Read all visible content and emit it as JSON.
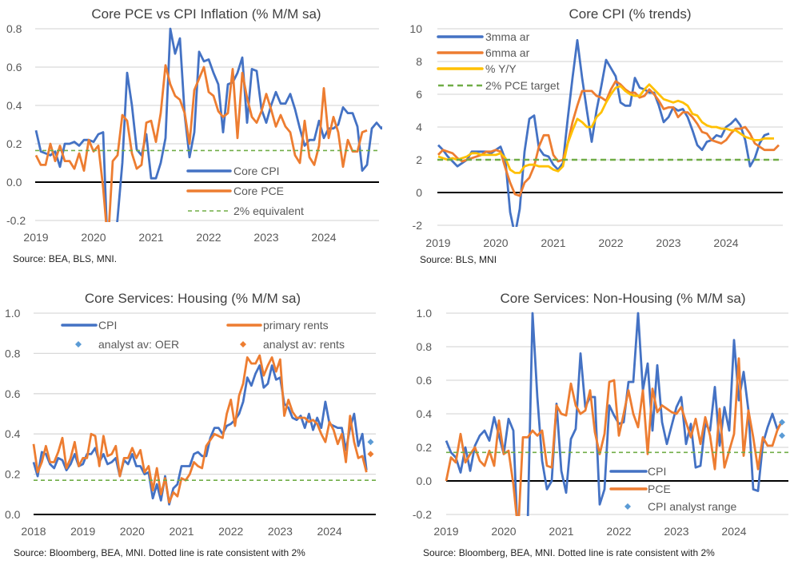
{
  "chart_data": [
    {
      "id": "p1",
      "type": "line",
      "title": "Core PCE vs CPI Inflation (% M/M sa)",
      "source": "Source: BEA, BLS, MNI.",
      "xlabel": "",
      "ylabel": "",
      "x_start": "2019-01",
      "x_tick_labels": [
        "2019",
        "2020",
        "2021",
        "2022",
        "2023",
        "2024"
      ],
      "y_tick_labels": [
        "0.8",
        "0.6",
        "0.4",
        "0.2",
        "0.0",
        "-0.2"
      ],
      "y_ticks": [
        0.8,
        0.6,
        0.4,
        0.2,
        0.0,
        -0.2
      ],
      "ylim": [
        -0.2,
        0.8
      ],
      "grid": true,
      "legend_position": "bottom-center",
      "series": [
        {
          "name": "Core CPI",
          "color": "#4472c4",
          "style": "solid",
          "values": [
            0.27,
            0.16,
            0.15,
            0.14,
            0.16,
            0.08,
            0.2,
            0.2,
            0.21,
            0.19,
            0.22,
            0.22,
            0.21,
            0.25,
            0.26,
            -0.4,
            -0.45,
            -0.19,
            0.1,
            0.57,
            0.4,
            0.17,
            0.14,
            0.25,
            0.02,
            0.02,
            0.1,
            0.23,
            0.8,
            0.67,
            0.75,
            0.35,
            0.13,
            0.26,
            0.68,
            0.63,
            0.64,
            0.57,
            0.51,
            0.26,
            0.51,
            0.52,
            0.57,
            0.65,
            0.31,
            0.59,
            0.58,
            0.38,
            0.31,
            0.4,
            0.47,
            0.41,
            0.41,
            0.46,
            0.38,
            0.28,
            0.19,
            0.22,
            0.22,
            0.32,
            0.23,
            0.28,
            0.28,
            0.3,
            0.39,
            0.36,
            0.36,
            0.29,
            0.06,
            0.09,
            0.28,
            0.31,
            0.28,
            0.31
          ]
        },
        {
          "name": "Core PCE",
          "color": "#ed7d31",
          "style": "solid",
          "values": [
            0.14,
            0.09,
            0.09,
            0.2,
            0.11,
            0.19,
            0.11,
            0.11,
            0.07,
            0.15,
            0.06,
            0.22,
            0.16,
            0.19,
            -0.03,
            -0.32,
            0.11,
            0.14,
            0.35,
            0.32,
            0.15,
            0.07,
            0.09,
            0.31,
            0.32,
            0.21,
            0.36,
            0.61,
            0.51,
            0.45,
            0.43,
            0.36,
            0.2,
            0.48,
            0.54,
            0.6,
            0.47,
            0.45,
            0.37,
            0.34,
            0.36,
            0.59,
            0.23,
            0.57,
            0.44,
            0.34,
            0.31,
            0.37,
            0.46,
            0.38,
            0.29,
            0.35,
            0.29,
            0.26,
            0.14,
            0.1,
            0.32,
            0.13,
            0.09,
            0.19,
            0.49,
            0.23,
            0.34,
            0.26,
            0.08,
            0.22,
            0.16,
            0.16,
            0.26,
            0.27
          ]
        },
        {
          "name": "2% equivalent",
          "color": "#70ad47",
          "style": "dashed",
          "constant": 0.165
        }
      ]
    },
    {
      "id": "p2",
      "type": "line",
      "title": "Core CPI (% trends)",
      "source": "Source: BLS, MNI",
      "xlabel": "",
      "ylabel": "",
      "x_start": "2019-01",
      "x_tick_labels": [
        "2019",
        "2020",
        "2021",
        "2022",
        "2023",
        "2024"
      ],
      "y_tick_labels": [
        "10",
        "8",
        "6",
        "4",
        "2",
        "0",
        "-2"
      ],
      "y_ticks": [
        10,
        8,
        6,
        4,
        2,
        0,
        -2
      ],
      "ylim": [
        -2,
        10
      ],
      "grid": true,
      "legend_position": "top-left",
      "series": [
        {
          "name": "3mma ar",
          "color": "#4472c4",
          "style": "solid",
          "values": [
            2.9,
            2.6,
            2.2,
            1.9,
            1.6,
            1.8,
            2.0,
            2.5,
            2.5,
            2.5,
            2.5,
            2.4,
            2.6,
            2.8,
            2.0,
            -1.2,
            -2.6,
            -1.0,
            2.5,
            4.5,
            4.7,
            2.7,
            2.3,
            2.2,
            1.7,
            1.4,
            1.8,
            4.5,
            7.0,
            9.3,
            7.0,
            5.0,
            3.1,
            5.0,
            6.5,
            8.1,
            7.6,
            7.1,
            5.5,
            5.3,
            5.3,
            7.0,
            6.4,
            6.3,
            6.1,
            6.1,
            5.3,
            4.3,
            4.6,
            5.2,
            5.0,
            5.1,
            4.6,
            3.8,
            2.9,
            2.6,
            3.1,
            3.2,
            3.5,
            3.4,
            4.0,
            4.2,
            4.5,
            4.1,
            3.2,
            1.6,
            2.1,
            3.0,
            3.5,
            3.6
          ]
        },
        {
          "name": "6mma ar",
          "color": "#ed7d31",
          "style": "solid",
          "values": [
            2.3,
            2.6,
            2.5,
            2.4,
            2.1,
            1.9,
            2.0,
            2.1,
            2.2,
            2.3,
            2.5,
            2.5,
            2.6,
            2.5,
            1.5,
            0.6,
            -0.1,
            -0.2,
            0.6,
            0.9,
            1.6,
            2.8,
            3.5,
            3.5,
            2.3,
            1.9,
            2.0,
            3.0,
            4.3,
            5.3,
            6.2,
            6.2,
            6.2,
            5.9,
            5.8,
            5.6,
            6.3,
            6.8,
            6.6,
            6.3,
            6.1,
            6.1,
            5.8,
            5.9,
            6.3,
            6.0,
            5.6,
            5.1,
            5.2,
            5.2,
            4.6,
            4.9,
            4.9,
            4.6,
            4.2,
            3.7,
            3.6,
            3.2,
            3.1,
            3.0,
            3.2,
            3.6,
            3.9,
            3.9,
            4.0,
            3.6,
            3.0,
            2.8,
            2.6,
            2.6,
            2.6,
            2.9
          ]
        },
        {
          "name": "% Y/Y",
          "color": "#ffc000",
          "style": "solid",
          "values": [
            2.2,
            2.1,
            2.0,
            2.1,
            2.0,
            2.1,
            2.2,
            2.4,
            2.4,
            2.3,
            2.3,
            2.3,
            2.3,
            2.4,
            2.1,
            1.4,
            1.2,
            1.2,
            1.6,
            1.7,
            1.7,
            1.6,
            1.6,
            1.6,
            1.4,
            1.3,
            1.6,
            3.0,
            3.8,
            4.5,
            4.3,
            4.0,
            4.0,
            4.6,
            4.9,
            5.5,
            6.0,
            6.4,
            6.5,
            6.2,
            6.0,
            5.9,
            5.9,
            6.3,
            6.6,
            6.3,
            6.0,
            5.7,
            5.6,
            5.5,
            5.6,
            5.5,
            5.3,
            4.8,
            4.7,
            4.3,
            4.1,
            4.0,
            4.0,
            3.9,
            3.9,
            3.8,
            3.8,
            3.6,
            3.4,
            3.3,
            3.2,
            3.2,
            3.3,
            3.3,
            3.3
          ]
        },
        {
          "name": "2% PCE target",
          "color": "#70ad47",
          "style": "dashed",
          "constant": 2.0
        }
      ]
    },
    {
      "id": "p3",
      "type": "line",
      "title": "Core Services: Housing (% M/M sa)",
      "source": "Source: Bloomberg, BEA, MNI. Dotted line is rate consistent with 2%",
      "xlabel": "",
      "ylabel": "",
      "x_start": "2018-01",
      "x_tick_labels": [
        "2018",
        "2019",
        "2020",
        "2021",
        "2022",
        "2023",
        "2024"
      ],
      "y_tick_labels": [
        "1.0",
        "0.8",
        "0.6",
        "0.4",
        "0.2",
        "0.0"
      ],
      "y_ticks": [
        1.0,
        0.8,
        0.6,
        0.4,
        0.2,
        0.0
      ],
      "ylim": [
        0.0,
        1.0
      ],
      "grid": true,
      "legend_position": "top",
      "series": [
        {
          "name": "CPI",
          "color": "#4472c4",
          "style": "solid",
          "values": [
            0.26,
            0.19,
            0.31,
            0.3,
            0.25,
            0.23,
            0.28,
            0.27,
            0.22,
            0.25,
            0.3,
            0.24,
            0.25,
            0.3,
            0.3,
            0.33,
            0.26,
            0.3,
            0.25,
            0.26,
            0.28,
            0.19,
            0.27,
            0.25,
            0.3,
            0.24,
            0.24,
            0.2,
            0.21,
            0.08,
            0.15,
            0.07,
            0.19,
            0.05,
            0.13,
            0.15,
            0.24,
            0.24,
            0.24,
            0.3,
            0.31,
            0.29,
            0.29,
            0.38,
            0.43,
            0.43,
            0.4,
            0.44,
            0.45,
            0.47,
            0.5,
            0.56,
            0.68,
            0.64,
            0.7,
            0.74,
            0.63,
            0.65,
            0.74,
            0.67,
            0.68,
            0.55,
            0.53,
            0.48,
            0.47,
            0.49,
            0.43,
            0.5,
            0.42,
            0.48,
            0.43,
            0.56,
            0.45,
            0.44,
            0.43,
            0.43,
            0.32,
            0.43,
            0.5,
            0.34,
            0.4,
            0.22
          ]
        },
        {
          "name": "primary rents",
          "color": "#ed7d31",
          "style": "solid",
          "values": [
            0.35,
            0.21,
            0.26,
            0.34,
            0.26,
            0.26,
            0.31,
            0.38,
            0.23,
            0.28,
            0.36,
            0.24,
            0.28,
            0.28,
            0.4,
            0.39,
            0.24,
            0.39,
            0.29,
            0.3,
            0.34,
            0.19,
            0.28,
            0.28,
            0.33,
            0.28,
            0.32,
            0.21,
            0.24,
            0.12,
            0.23,
            0.1,
            0.18,
            0.06,
            0.11,
            0.09,
            0.18,
            0.17,
            0.2,
            0.26,
            0.24,
            0.23,
            0.34,
            0.37,
            0.4,
            0.39,
            0.38,
            0.5,
            0.57,
            0.44,
            0.59,
            0.65,
            0.78,
            0.75,
            0.75,
            0.79,
            0.69,
            0.74,
            0.78,
            0.71,
            0.77,
            0.49,
            0.57,
            0.51,
            0.48,
            0.48,
            0.48,
            0.46,
            0.47,
            0.45,
            0.4,
            0.36,
            0.46,
            0.42,
            0.35,
            0.4,
            0.26,
            0.49,
            0.36,
            0.28,
            0.29,
            0.21
          ]
        },
        {
          "name": "analyst av: OER",
          "color": "#5b9bd5",
          "style": "marker",
          "points": [
            {
              "index": 82,
              "value": 0.36
            }
          ]
        },
        {
          "name": "analyst av: rents",
          "color": "#ed7d31",
          "style": "marker",
          "points": [
            {
              "index": 82,
              "value": 0.3
            }
          ]
        },
        {
          "name": "2% consistent",
          "color": "#70ad47",
          "style": "dashed",
          "constant": 0.17
        }
      ]
    },
    {
      "id": "p4",
      "type": "line",
      "title": "Core Services: Non-Housing (% M/M sa)",
      "source": "Source: Bloomberg, BEA, MNI. Dotted line is rate consistent with 2%",
      "xlabel": "",
      "ylabel": "",
      "x_start": "2019-01",
      "x_tick_labels": [
        "2019",
        "2020",
        "2021",
        "2022",
        "2023",
        "2024"
      ],
      "y_tick_labels": [
        "1.0",
        "0.8",
        "0.6",
        "0.4",
        "0.2",
        "0.0",
        "-0.2"
      ],
      "y_ticks": [
        1.0,
        0.8,
        0.6,
        0.4,
        0.2,
        0.0,
        -0.2
      ],
      "ylim": [
        -0.2,
        1.0
      ],
      "grid": true,
      "legend_position": "bottom-center",
      "series": [
        {
          "name": "CPI",
          "color": "#4472c4",
          "style": "solid",
          "values": [
            0.24,
            0.17,
            0.14,
            0.05,
            0.2,
            0.06,
            0.21,
            0.27,
            0.3,
            0.24,
            0.38,
            0.27,
            0.16,
            0.37,
            0.3,
            -0.4,
            -0.45,
            -0.25,
            1.0,
            0.5,
            0.12,
            -0.05,
            0.0,
            0.46,
            0.06,
            -0.07,
            0.25,
            0.31,
            0.76,
            0.44,
            0.5,
            0.5,
            -0.14,
            -0.05,
            0.45,
            0.39,
            0.34,
            0.35,
            0.59,
            0.59,
            1.0,
            0.54,
            0.7,
            0.3,
            0.69,
            0.35,
            0.22,
            0.33,
            0.44,
            0.5,
            0.22,
            0.34,
            0.08,
            0.09,
            0.34,
            0.3,
            0.56,
            0.21,
            0.44,
            0.3,
            0.84,
            0.48,
            0.65,
            0.42,
            -0.05,
            -0.06,
            0.22,
            0.32,
            0.4,
            0.31,
            0.35
          ]
        },
        {
          "name": "PCE",
          "color": "#ed7d31",
          "style": "solid",
          "values": [
            0.0,
            0.14,
            0.11,
            0.28,
            0.11,
            0.16,
            0.2,
            0.12,
            0.09,
            0.18,
            0.09,
            0.36,
            0.16,
            0.18,
            -0.02,
            -0.3,
            0.26,
            0.26,
            0.3,
            0.27,
            0.3,
            0.09,
            0.08,
            0.45,
            0.4,
            0.39,
            0.58,
            0.45,
            0.4,
            0.42,
            0.54,
            0.29,
            0.16,
            0.28,
            0.59,
            0.6,
            0.27,
            0.4,
            0.54,
            0.4,
            0.32,
            0.54,
            0.16,
            0.55,
            0.41,
            0.45,
            0.43,
            0.41,
            0.4,
            0.44,
            0.35,
            0.26,
            0.37,
            0.22,
            0.38,
            0.27,
            0.07,
            0.43,
            0.08,
            0.18,
            0.28,
            0.73,
            0.15,
            0.42,
            0.26,
            0.07,
            0.26,
            0.21,
            0.21,
            0.3,
            0.36
          ]
        },
        {
          "name": "CPI analyst range",
          "color": "#5b9bd5",
          "style": "marker",
          "points": [
            {
              "index": 70,
              "value": 0.35
            },
            {
              "index": 70,
              "value": 0.27
            }
          ]
        },
        {
          "name": "2% consistent",
          "color": "#70ad47",
          "style": "dashed",
          "constant": 0.17
        }
      ]
    }
  ],
  "legends": {
    "p1": [
      "Core CPI",
      "Core PCE",
      "2% equivalent"
    ],
    "p2": [
      "3mma ar",
      "6mma ar",
      "% Y/Y",
      "2% PCE target"
    ],
    "p3": [
      "CPI",
      "primary rents",
      "analyst av: OER",
      "analyst av: rents"
    ],
    "p4": [
      "CPI",
      "PCE",
      "CPI analyst range"
    ]
  }
}
